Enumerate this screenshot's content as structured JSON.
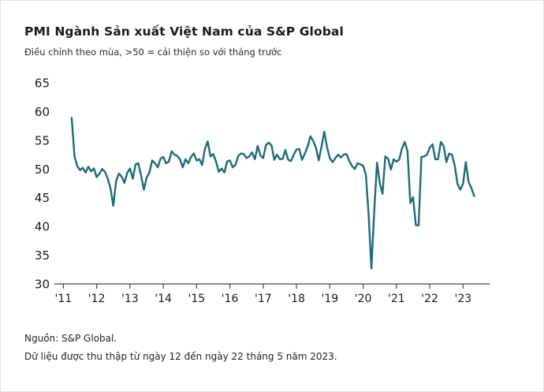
{
  "chart_data": {
    "type": "line",
    "title": "PMI Ngành Sản xuất Việt Nam của S&P Global",
    "subtitle": "Điều chỉnh theo mùa, >50 = cải thiện so với tháng trước",
    "source": "Nguồn: S&P Global.",
    "note": "Dữ liệu được thu thập từ ngày 12 đến ngày 22 tháng 5 năm 2023.",
    "ylim": [
      30,
      65
    ],
    "yticks": [
      30,
      35,
      40,
      45,
      50,
      55,
      60,
      65
    ],
    "xlim": [
      2010.92,
      2023.75
    ],
    "grid": "off",
    "legend": "none",
    "line_color": "#1e6b79",
    "axis_color": "#444444",
    "x_ticks": [
      {
        "year": 2011,
        "label": "'11"
      },
      {
        "year": 2012,
        "label": "'12"
      },
      {
        "year": 2013,
        "label": "'13"
      },
      {
        "year": 2014,
        "label": "'14"
      },
      {
        "year": 2015,
        "label": "'15"
      },
      {
        "year": 2016,
        "label": "'16"
      },
      {
        "year": 2017,
        "label": "'17"
      },
      {
        "year": 2018,
        "label": "'18"
      },
      {
        "year": 2019,
        "label": "'19"
      },
      {
        "year": 2020,
        "label": "'20"
      },
      {
        "year": 2021,
        "label": "'21"
      },
      {
        "year": 2022,
        "label": "'22"
      },
      {
        "year": 2023,
        "label": "'23"
      }
    ],
    "series": [
      {
        "name": "PMI",
        "color": "#1e6b79",
        "start_year": 2011,
        "start_month": 4,
        "frequency": "monthly",
        "values": [
          58.9,
          52.2,
          50.5,
          49.8,
          50.2,
          49.4,
          50.4,
          49.6,
          50.1,
          48.6,
          49.2,
          50.0,
          49.5,
          48.3,
          46.6,
          43.6,
          47.9,
          49.2,
          48.7,
          47.6,
          49.3,
          50.1,
          48.3,
          50.8,
          51.0,
          48.8,
          46.4,
          48.5,
          49.4,
          51.5,
          51.0,
          50.3,
          51.8,
          52.1,
          51.0,
          51.3,
          53.1,
          52.5,
          52.3,
          51.7,
          50.3,
          51.7,
          51.0,
          52.1,
          52.7,
          51.5,
          51.7,
          50.7,
          53.5,
          54.8,
          52.2,
          52.6,
          51.3,
          49.5,
          50.1,
          49.4,
          51.3,
          51.5,
          50.3,
          50.7,
          52.3,
          52.7,
          52.6,
          51.9,
          52.2,
          52.9,
          51.7,
          54.0,
          52.4,
          51.9,
          54.2,
          54.6,
          54.1,
          51.6,
          52.5,
          51.7,
          51.8,
          53.3,
          51.6,
          51.4,
          52.5,
          53.4,
          53.5,
          51.6,
          52.7,
          53.9,
          55.7,
          54.9,
          53.7,
          51.5,
          53.9,
          56.5,
          53.8,
          51.9,
          51.2,
          51.9,
          52.5,
          52.0,
          52.5,
          52.6,
          51.4,
          50.5,
          50.0,
          51.0,
          50.8,
          50.6,
          49.0,
          41.9,
          32.7,
          42.7,
          51.1,
          47.6,
          45.7,
          52.2,
          51.8,
          49.9,
          51.7,
          51.3,
          51.6,
          53.6,
          54.7,
          53.1,
          44.1,
          45.1,
          40.2,
          40.2,
          52.1,
          52.2,
          52.5,
          53.7,
          54.3,
          51.7,
          51.7,
          54.7,
          54.0,
          51.2,
          52.7,
          52.5,
          50.6,
          47.4,
          46.4,
          47.4,
          51.2,
          47.7,
          46.7,
          45.3
        ]
      }
    ]
  }
}
